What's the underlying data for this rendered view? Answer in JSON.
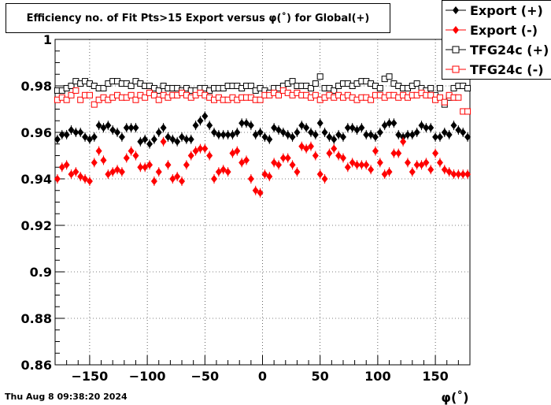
{
  "title": "Efficiency no. of Fit Pts>15 Export versus φ(˚) for Global(+)",
  "timestamp": "Thu Aug  8 09:38:20 2024",
  "xlabel": "φ(˚)",
  "colors": {
    "export_plus": "#000000",
    "export_minus": "#ff0000",
    "tfg_plus": "#000000",
    "tfg_minus": "#ff0000"
  },
  "chart_data": {
    "type": "scatter",
    "title": "Efficiency no. of Fit Pts>15 Export versus φ(˚) for Global(+)",
    "xlabel": "φ(˚)",
    "ylabel": "",
    "xlim": [
      -180,
      180
    ],
    "ylim": [
      0.86,
      1.0
    ],
    "xticks": [
      -150,
      -100,
      -50,
      0,
      50,
      100,
      150
    ],
    "xtick_labels": [
      "−150",
      "−100",
      "−50",
      "0",
      "50",
      "100",
      "150"
    ],
    "yticks": [
      0.86,
      0.88,
      0.9,
      0.92,
      0.94,
      0.96,
      0.98,
      1.0
    ],
    "ytick_labels": [
      "0.86",
      "0.88",
      "0.9",
      "0.92",
      "0.94",
      "0.96",
      "0.98",
      "1"
    ],
    "grid": true,
    "legend_position": "top-right",
    "x": [
      -178,
      -174,
      -170,
      -166,
      -162,
      -158,
      -154,
      -150,
      -146,
      -142,
      -138,
      -134,
      -130,
      -126,
      -122,
      -118,
      -114,
      -110,
      -106,
      -102,
      -98,
      -94,
      -90,
      -86,
      -82,
      -78,
      -74,
      -70,
      -66,
      -62,
      -58,
      -54,
      -50,
      -46,
      -42,
      -38,
      -34,
      -30,
      -26,
      -22,
      -18,
      -14,
      -10,
      -6,
      -2,
      2,
      6,
      10,
      14,
      18,
      22,
      26,
      30,
      34,
      38,
      42,
      46,
      50,
      54,
      58,
      62,
      66,
      70,
      74,
      78,
      82,
      86,
      90,
      94,
      98,
      102,
      106,
      110,
      114,
      118,
      122,
      126,
      130,
      134,
      138,
      142,
      146,
      150,
      154,
      158,
      162,
      166,
      170,
      174,
      178
    ],
    "series": [
      {
        "name": "Export (+)",
        "marker": "filled-diamond",
        "color": "#000000",
        "values": [
          0.957,
          0.959,
          0.959,
          0.961,
          0.96,
          0.96,
          0.958,
          0.957,
          0.958,
          0.963,
          0.962,
          0.963,
          0.961,
          0.96,
          0.958,
          0.962,
          0.962,
          0.962,
          0.956,
          0.957,
          0.955,
          0.957,
          0.96,
          0.962,
          0.958,
          0.957,
          0.956,
          0.958,
          0.957,
          0.957,
          0.963,
          0.965,
          0.967,
          0.963,
          0.96,
          0.959,
          0.959,
          0.959,
          0.959,
          0.96,
          0.964,
          0.964,
          0.963,
          0.959,
          0.96,
          0.958,
          0.957,
          0.962,
          0.961,
          0.96,
          0.959,
          0.958,
          0.96,
          0.963,
          0.962,
          0.96,
          0.959,
          0.964,
          0.96,
          0.958,
          0.957,
          0.959,
          0.958,
          0.962,
          0.962,
          0.961,
          0.962,
          0.959,
          0.959,
          0.958,
          0.96,
          0.963,
          0.964,
          0.964,
          0.959,
          0.958,
          0.959,
          0.959,
          0.96,
          0.963,
          0.962,
          0.962,
          0.958,
          0.958,
          0.96,
          0.959,
          0.963,
          0.961,
          0.96,
          0.958
        ]
      },
      {
        "name": "Export (-)",
        "marker": "filled-diamond",
        "color": "#ff0000",
        "values": [
          0.94,
          0.945,
          0.946,
          0.942,
          0.943,
          0.941,
          0.94,
          0.939,
          0.947,
          0.952,
          0.948,
          0.942,
          0.943,
          0.944,
          0.943,
          0.949,
          0.952,
          0.95,
          0.945,
          0.945,
          0.946,
          0.939,
          0.943,
          0.956,
          0.946,
          0.94,
          0.941,
          0.939,
          0.946,
          0.95,
          0.952,
          0.953,
          0.953,
          0.95,
          0.94,
          0.943,
          0.944,
          0.943,
          0.951,
          0.952,
          0.947,
          0.948,
          0.94,
          0.935,
          0.934,
          0.942,
          0.941,
          0.947,
          0.946,
          0.949,
          0.949,
          0.946,
          0.943,
          0.954,
          0.953,
          0.954,
          0.95,
          0.942,
          0.94,
          0.951,
          0.953,
          0.95,
          0.949,
          0.945,
          0.947,
          0.946,
          0.946,
          0.946,
          0.944,
          0.952,
          0.947,
          0.942,
          0.943,
          0.951,
          0.951,
          0.956,
          0.947,
          0.943,
          0.946,
          0.946,
          0.947,
          0.944,
          0.951,
          0.947,
          0.944,
          0.943,
          0.942,
          0.942,
          0.942,
          0.942
        ]
      },
      {
        "name": "TFG24c (+)",
        "marker": "open-square",
        "color": "#000000",
        "values": [
          0.978,
          0.978,
          0.979,
          0.98,
          0.982,
          0.981,
          0.982,
          0.981,
          0.98,
          0.979,
          0.979,
          0.981,
          0.982,
          0.982,
          0.981,
          0.981,
          0.98,
          0.982,
          0.981,
          0.98,
          0.98,
          0.979,
          0.978,
          0.98,
          0.979,
          0.979,
          0.979,
          0.978,
          0.979,
          0.978,
          0.978,
          0.979,
          0.979,
          0.978,
          0.979,
          0.979,
          0.979,
          0.98,
          0.98,
          0.98,
          0.979,
          0.98,
          0.98,
          0.978,
          0.979,
          0.978,
          0.977,
          0.979,
          0.979,
          0.98,
          0.981,
          0.982,
          0.98,
          0.98,
          0.98,
          0.979,
          0.981,
          0.984,
          0.979,
          0.979,
          0.978,
          0.98,
          0.981,
          0.981,
          0.98,
          0.981,
          0.982,
          0.982,
          0.981,
          0.98,
          0.979,
          0.983,
          0.984,
          0.981,
          0.98,
          0.979,
          0.979,
          0.98,
          0.981,
          0.979,
          0.978,
          0.979,
          0.976,
          0.979,
          0.972,
          0.975,
          0.979,
          0.98,
          0.98,
          0.979
        ]
      },
      {
        "name": "TFG24c (-)",
        "marker": "open-square",
        "color": "#ff0000",
        "values": [
          0.974,
          0.975,
          0.974,
          0.976,
          0.978,
          0.974,
          0.976,
          0.976,
          0.972,
          0.974,
          0.975,
          0.974,
          0.975,
          0.976,
          0.975,
          0.975,
          0.976,
          0.974,
          0.976,
          0.975,
          0.977,
          0.976,
          0.974,
          0.976,
          0.975,
          0.976,
          0.976,
          0.977,
          0.976,
          0.975,
          0.976,
          0.977,
          0.976,
          0.975,
          0.974,
          0.975,
          0.974,
          0.974,
          0.975,
          0.974,
          0.975,
          0.975,
          0.975,
          0.974,
          0.974,
          0.976,
          0.976,
          0.977,
          0.976,
          0.978,
          0.977,
          0.976,
          0.977,
          0.976,
          0.976,
          0.975,
          0.976,
          0.974,
          0.975,
          0.976,
          0.975,
          0.976,
          0.975,
          0.976,
          0.975,
          0.974,
          0.975,
          0.975,
          0.974,
          0.976,
          0.976,
          0.975,
          0.976,
          0.976,
          0.975,
          0.976,
          0.975,
          0.976,
          0.976,
          0.977,
          0.976,
          0.976,
          0.974,
          0.975,
          0.973,
          0.976,
          0.975,
          0.975,
          0.969,
          0.969
        ]
      }
    ]
  }
}
